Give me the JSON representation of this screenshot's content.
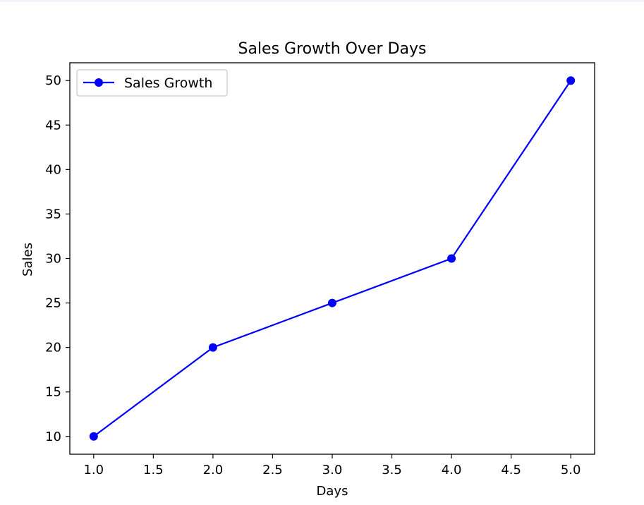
{
  "chart_data": {
    "type": "line",
    "title": "Sales Growth Over Days",
    "xlabel": "Days",
    "ylabel": "Sales",
    "x": [
      1,
      2,
      3,
      4,
      5
    ],
    "series": [
      {
        "name": "Sales Growth",
        "values": [
          10,
          20,
          25,
          30,
          50
        ],
        "color": "#0000ff",
        "marker": "circle"
      }
    ],
    "xlim": [
      0.8,
      5.2
    ],
    "ylim": [
      8,
      52
    ],
    "xticks": [
      "1.0",
      "1.5",
      "2.0",
      "2.5",
      "3.0",
      "3.5",
      "4.0",
      "4.5",
      "5.0"
    ],
    "yticks": [
      "10",
      "15",
      "20",
      "25",
      "30",
      "35",
      "40",
      "45",
      "50"
    ],
    "grid": false,
    "legend_position": "upper-left"
  }
}
